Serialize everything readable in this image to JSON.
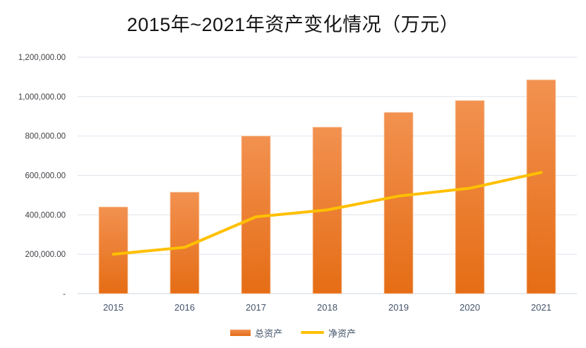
{
  "title": "2015年~2021年资产变化情况（万元）",
  "legend": {
    "items": [
      {
        "label": "总资产",
        "swatch": "orange-bar"
      },
      {
        "label": "净资产",
        "swatch": "gold-line"
      }
    ]
  },
  "colors": {
    "bar_gradient_top": "#F29150",
    "bar_gradient_bottom": "#E56D15",
    "bar_border": "#F8CFAE",
    "line": "#FFC000",
    "axis_text": "#44546A",
    "ytick_text": "#404047",
    "gridline": "#E1E7EE",
    "axis_line": "#D8DFE8",
    "title_text": "#141414"
  },
  "chart_data": {
    "type": "bar",
    "subtype": "bar-and-line combo",
    "title": "2015年~2021年资产变化情况（万元）",
    "categories": [
      "2015",
      "2016",
      "2017",
      "2018",
      "2019",
      "2020",
      "2021"
    ],
    "series": [
      {
        "name": "总资产",
        "type": "bar",
        "values": [
          440000,
          515000,
          800000,
          845000,
          920000,
          980000,
          1085000
        ]
      },
      {
        "name": "净资产",
        "type": "line",
        "values": [
          200000,
          235000,
          390000,
          425000,
          495000,
          535000,
          615000
        ]
      }
    ],
    "xlabel": "",
    "ylabel": "",
    "ylim": [
      0,
      1200000
    ],
    "ytick_step": 200000,
    "ytick_labels": [
      "-",
      "200,000.00",
      "400,000.00",
      "600,000.00",
      "800,000.00",
      "1,000,000.00",
      "1,200,000.00"
    ],
    "grid": true,
    "legend_position": "bottom"
  }
}
